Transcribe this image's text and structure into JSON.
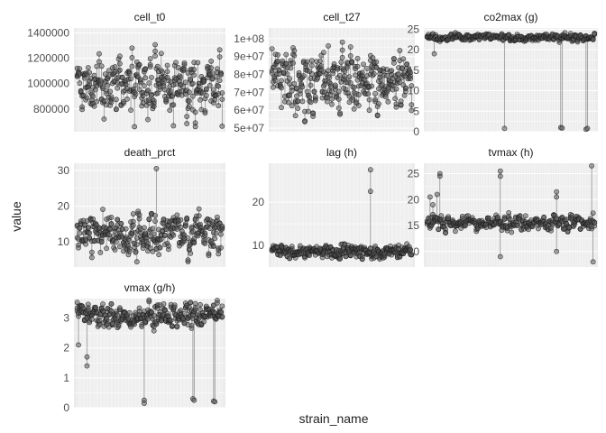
{
  "figure": {
    "xlabel": "strain_name",
    "ylabel": "value"
  },
  "colors": {
    "panel_bg": "#ebebeb",
    "grid": "#ffffff",
    "point_fill": "#555555",
    "point_stroke": "#1a1a1a",
    "line": "#777777",
    "strip_text": "#1a1a1a",
    "tick_text": "#4d4d4d"
  },
  "chart_data": [
    {
      "type": "scatter",
      "title": "cell_t0",
      "n_strains": 120,
      "ylim": [
        620000,
        1440000
      ],
      "yticks": [
        800000,
        1000000,
        1200000,
        1400000
      ],
      "yticklabels": [
        "800000",
        "1000000",
        "1200000",
        "1400000"
      ],
      "typical_range": [
        660000,
        1420000
      ],
      "values_by_strain_mean": 980000,
      "outliers": []
    },
    {
      "type": "scatter",
      "title": "cell_t27",
      "n_strains": 120,
      "ylim": [
        48000000,
        106000000
      ],
      "yticks": [
        50000000,
        60000000,
        70000000,
        80000000,
        90000000,
        100000000
      ],
      "yticklabels": [
        "5e+07",
        "6e+07",
        "7e+07",
        "8e+07",
        "9e+07",
        "1e+08"
      ],
      "typical_range": [
        52000000,
        104000000
      ],
      "values_by_strain_mean": 76000000,
      "outliers": []
    },
    {
      "type": "scatter",
      "title": "co2max (g)",
      "n_strains": 120,
      "ylim": [
        0,
        25.3
      ],
      "yticks": [
        0,
        5,
        10,
        15,
        20,
        25
      ],
      "yticklabels": [
        "0",
        "5",
        "10",
        "15",
        "20",
        "25"
      ],
      "typical_range": [
        21.5,
        24.2
      ],
      "values_by_strain_mean": 23.0,
      "outliers": [
        {
          "x": 5,
          "y": 19.0
        },
        {
          "x": 55,
          "y": 0.8
        },
        {
          "x": 95,
          "y": 1.0
        },
        {
          "x": 96,
          "y": 0.9
        },
        {
          "x": 113,
          "y": 0.6
        },
        {
          "x": 114,
          "y": 0.8
        }
      ]
    },
    {
      "type": "scatter",
      "title": "death_prct",
      "n_strains": 120,
      "ylim": [
        3,
        32
      ],
      "yticks": [
        10,
        20,
        30
      ],
      "yticklabels": [
        "10",
        "20",
        "30"
      ],
      "typical_range": [
        4,
        22
      ],
      "values_by_strain_mean": 12,
      "outliers": [
        {
          "x": 65,
          "y": 30.5
        }
      ]
    },
    {
      "type": "scatter",
      "title": "lag (h)",
      "n_strains": 120,
      "ylim": [
        5,
        29
      ],
      "yticks": [
        10,
        20
      ],
      "yticklabels": [
        "10",
        "20"
      ],
      "typical_range": [
        6,
        10.5
      ],
      "values_by_strain_mean": 8.5,
      "outliers": [
        {
          "x": 84,
          "y": 27.5
        },
        {
          "x": 84,
          "y": 22.5
        }
      ]
    },
    {
      "type": "scatter",
      "title": "tvmax (h)",
      "n_strains": 120,
      "ylim": [
        7,
        27
      ],
      "yticks": [
        10,
        15,
        20,
        25
      ],
      "yticklabels": [
        "10",
        "15",
        "20",
        "25"
      ],
      "typical_range": [
        13,
        17.5
      ],
      "values_by_strain_mean": 15.5,
      "outliers": [
        {
          "x": 2,
          "y": 20.5
        },
        {
          "x": 4,
          "y": 19
        },
        {
          "x": 7,
          "y": 21
        },
        {
          "x": 9,
          "y": 25
        },
        {
          "x": 9,
          "y": 24.5
        },
        {
          "x": 52,
          "y": 25.5
        },
        {
          "x": 52,
          "y": 24.5
        },
        {
          "x": 52,
          "y": 9
        },
        {
          "x": 92,
          "y": 21.5
        },
        {
          "x": 92,
          "y": 20.5
        },
        {
          "x": 92,
          "y": 10
        },
        {
          "x": 117,
          "y": 26.5
        },
        {
          "x": 118,
          "y": 8
        }
      ]
    },
    {
      "type": "scatter",
      "title": "vmax (g/h)",
      "n_strains": 120,
      "ylim": [
        0,
        3.65
      ],
      "yticks": [
        0,
        1,
        2,
        3
      ],
      "yticklabels": [
        "0",
        "1",
        "2",
        "3"
      ],
      "typical_range": [
        2.4,
        3.6
      ],
      "values_by_strain_mean": 3.1,
      "outliers": [
        {
          "x": 1,
          "y": 2.1
        },
        {
          "x": 8,
          "y": 1.7
        },
        {
          "x": 8,
          "y": 1.4
        },
        {
          "x": 55,
          "y": 0.25
        },
        {
          "x": 55,
          "y": 0.15
        },
        {
          "x": 95,
          "y": 0.3
        },
        {
          "x": 96,
          "y": 0.25
        },
        {
          "x": 112,
          "y": 0.22
        },
        {
          "x": 113,
          "y": 0.2
        }
      ]
    }
  ]
}
